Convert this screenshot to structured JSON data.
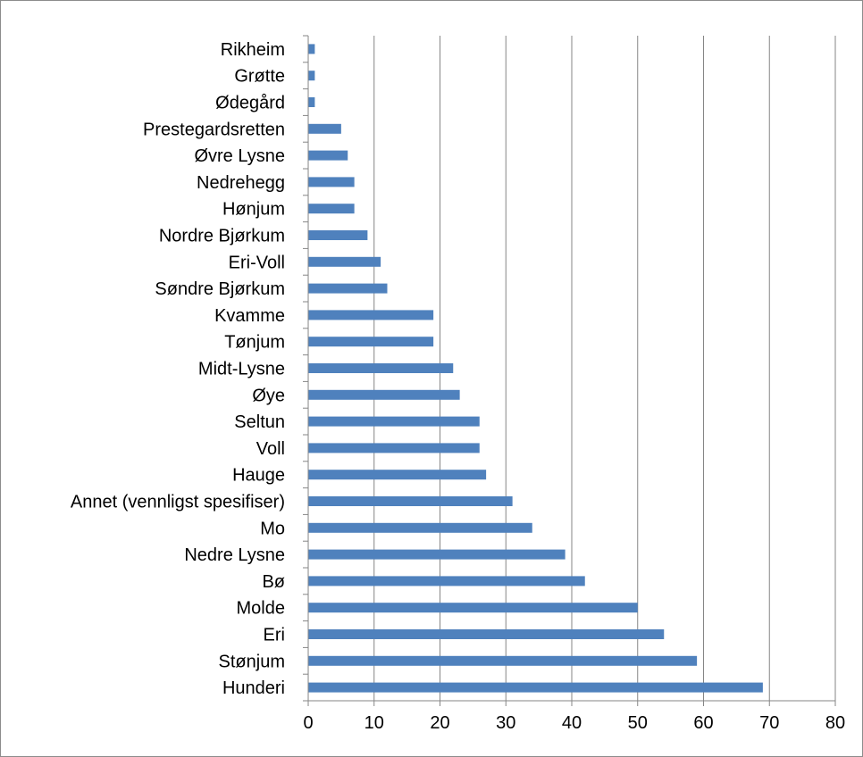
{
  "chart_data": {
    "type": "bar",
    "orientation": "horizontal",
    "title": "",
    "xlabel": "",
    "ylabel": "",
    "xlim": [
      0,
      80
    ],
    "x_ticks": [
      0,
      10,
      20,
      30,
      40,
      50,
      60,
      70,
      80
    ],
    "x_tick_labels": [
      "0",
      "10",
      "20",
      "30",
      "40",
      "50",
      "60",
      "70",
      "80"
    ],
    "grid": "vertical major gridlines",
    "legend": "none",
    "bar_color": "#4F81BD",
    "categories": [
      "Rikheim",
      "Grøtte",
      "Ødegård",
      "Prestegardsretten",
      "Øvre Lysne",
      "Nedrehegg",
      "Hønjum",
      "Nordre Bjørkum",
      "Eri-Voll",
      "Søndre Bjørkum",
      "Kvamme",
      "Tønjum",
      "Midt-Lysne",
      "Øye",
      "Seltun",
      "Voll",
      "Hauge",
      "Annet (vennligst spesifiser)",
      "Mo",
      "Nedre Lysne",
      "Bø",
      "Molde",
      "Eri",
      "Stønjum",
      "Hunderi"
    ],
    "values": [
      1,
      1,
      1,
      5,
      6,
      7,
      7,
      9,
      11,
      12,
      19,
      19,
      22,
      23,
      26,
      26,
      27,
      31,
      34,
      39,
      42,
      50,
      54,
      59,
      69
    ]
  }
}
